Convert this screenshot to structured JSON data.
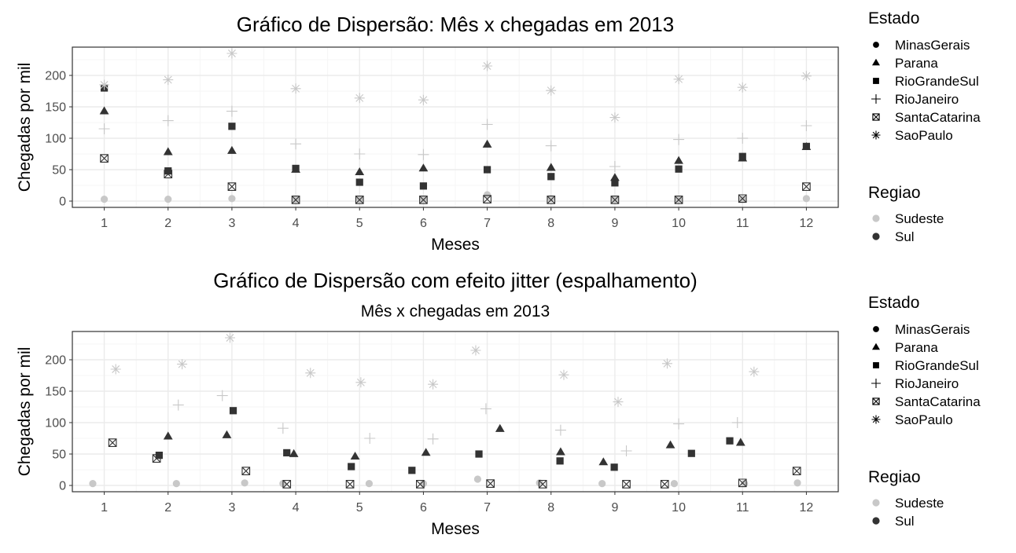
{
  "colors": {
    "Sudeste": "#c8c8c8",
    "Sul": "#333333",
    "grid_major": "#ebebeb",
    "grid_minor": "#f5f5f5",
    "panel_border": "#333333"
  },
  "legend": {
    "estado_title": "Estado",
    "estados": [
      {
        "name": "MinasGerais",
        "shape": "circle"
      },
      {
        "name": "Parana",
        "shape": "triangle"
      },
      {
        "name": "RioGrandeSul",
        "shape": "square"
      },
      {
        "name": "RioJaneiro",
        "shape": "plus"
      },
      {
        "name": "SantaCatarina",
        "shape": "boxx"
      },
      {
        "name": "SaoPaulo",
        "shape": "star"
      }
    ],
    "regiao_title": "Regiao",
    "regioes": [
      "Sudeste",
      "Sul"
    ]
  },
  "chart_data": [
    {
      "type": "scatter",
      "title": "Gráfico de Dispersão: Mês x chegadas em 2013",
      "subtitle": "",
      "xlabel": "Meses",
      "ylabel": "Chegadas por mil",
      "xlim": [
        0.5,
        12.5
      ],
      "ylim": [
        -10,
        245
      ],
      "x_ticks": [
        1,
        2,
        3,
        4,
        5,
        6,
        7,
        8,
        9,
        10,
        11,
        12
      ],
      "y_ticks": [
        0,
        50,
        100,
        150,
        200
      ],
      "grid": true,
      "series": [
        {
          "name": "MinasGerais",
          "regiao": "Sudeste",
          "x": [
            1,
            2,
            3,
            4,
            5,
            6,
            7,
            8,
            9,
            10,
            11,
            12
          ],
          "y": [
            3,
            3,
            4,
            3,
            3,
            3,
            10,
            4,
            3,
            3,
            3,
            4
          ]
        },
        {
          "name": "Parana",
          "regiao": "Sul",
          "x": [
            1,
            2,
            3,
            4,
            5,
            6,
            7,
            8,
            9,
            10,
            11,
            12
          ],
          "y": [
            143,
            78,
            80,
            50,
            46,
            52,
            90,
            53,
            37,
            64,
            68,
            86
          ]
        },
        {
          "name": "RioGrandeSul",
          "regiao": "Sul",
          "x": [
            1,
            2,
            3,
            4,
            5,
            6,
            7,
            8,
            9,
            10,
            11,
            12
          ],
          "y": [
            180,
            48,
            119,
            52,
            30,
            24,
            50,
            39,
            29,
            51,
            71,
            87
          ]
        },
        {
          "name": "RioJaneiro",
          "regiao": "Sudeste",
          "x": [
            1,
            2,
            3,
            4,
            5,
            6,
            7,
            8,
            9,
            10,
            11,
            12
          ],
          "y": [
            115,
            128,
            143,
            91,
            75,
            74,
            122,
            88,
            55,
            98,
            100,
            120
          ]
        },
        {
          "name": "SantaCatarina",
          "regiao": "Sul",
          "x": [
            1,
            2,
            3,
            4,
            5,
            6,
            7,
            8,
            9,
            10,
            11,
            12
          ],
          "y": [
            68,
            43,
            23,
            2,
            2,
            2,
            3,
            2,
            2,
            2,
            4,
            23
          ]
        },
        {
          "name": "SaoPaulo",
          "regiao": "Sudeste",
          "x": [
            1,
            2,
            3,
            4,
            5,
            6,
            7,
            8,
            9,
            10,
            11,
            12
          ],
          "y": [
            185,
            193,
            235,
            179,
            164,
            161,
            215,
            176,
            133,
            194,
            181,
            199
          ]
        }
      ]
    },
    {
      "type": "scatter",
      "title": "Gráfico de Dispersão com efeito jitter (espalhamento)",
      "subtitle": "Mês x chegadas em 2013",
      "xlabel": "Meses",
      "ylabel": "Chegadas por mil",
      "xlim": [
        0.5,
        12.5
      ],
      "ylim": [
        -10,
        245
      ],
      "x_ticks": [
        1,
        2,
        3,
        4,
        5,
        6,
        7,
        8,
        9,
        10,
        11,
        12
      ],
      "y_ticks": [
        0,
        50,
        100,
        150,
        200
      ],
      "grid": true,
      "series": [
        {
          "name": "MinasGerais",
          "regiao": "Sudeste",
          "x": [
            0.82,
            2.13,
            3.2,
            3.8,
            5.15,
            6.0,
            6.85,
            7.82,
            8.8,
            9.93,
            11.03,
            11.86
          ],
          "y": [
            3,
            3,
            4,
            3,
            3,
            3,
            10,
            4,
            3,
            3,
            3,
            4
          ]
        },
        {
          "name": "Parana",
          "regiao": "Sul",
          "x": [
            2.0,
            2.92,
            3.97,
            4.93,
            6.04,
            7.2,
            8.15,
            8.82,
            9.87,
            10.97
          ],
          "y": [
            78,
            80,
            50,
            46,
            52,
            90,
            53,
            37,
            64,
            68
          ]
        },
        {
          "name": "RioGrandeSul",
          "regiao": "Sul",
          "x": [
            1.86,
            3.02,
            3.86,
            4.87,
            5.82,
            6.87,
            8.14,
            8.99,
            10.2,
            10.8
          ],
          "y": [
            48,
            119,
            52,
            30,
            24,
            50,
            39,
            29,
            51,
            71
          ]
        },
        {
          "name": "RioJaneiro",
          "regiao": "Sudeste",
          "x": [
            2.16,
            2.85,
            3.8,
            5.16,
            6.15,
            6.98,
            8.15,
            9.18,
            10.0,
            10.92
          ],
          "y": [
            128,
            143,
            91,
            75,
            74,
            122,
            88,
            55,
            98,
            100
          ]
        },
        {
          "name": "SantaCatarina",
          "regiao": "Sul",
          "x": [
            1.13,
            1.82,
            3.22,
            3.86,
            4.85,
            5.95,
            7.05,
            7.87,
            9.18,
            9.78,
            11.0,
            11.85
          ],
          "y": [
            68,
            43,
            23,
            2,
            2,
            2,
            3,
            2,
            2,
            2,
            4,
            23
          ]
        },
        {
          "name": "SaoPaulo",
          "regiao": "Sudeste",
          "x": [
            1.18,
            2.22,
            2.97,
            4.23,
            5.02,
            6.15,
            6.82,
            8.2,
            9.05,
            9.82,
            11.18
          ],
          "y": [
            185,
            193,
            235,
            179,
            164,
            161,
            215,
            176,
            133,
            194,
            181
          ]
        }
      ]
    }
  ]
}
